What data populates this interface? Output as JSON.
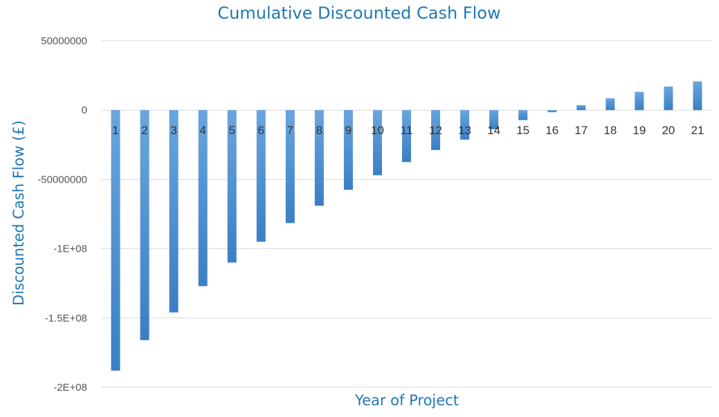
{
  "chart_data": {
    "type": "bar",
    "title": "Cumulative Discounted Cash Flow",
    "xlabel": "Year of Project",
    "ylabel": "Discounted Cash Flow (£)",
    "categories": [
      "1",
      "2",
      "3",
      "4",
      "5",
      "6",
      "7",
      "8",
      "9",
      "10",
      "11",
      "12",
      "13",
      "14",
      "15",
      "16",
      "17",
      "18",
      "19",
      "20",
      "21"
    ],
    "values": [
      -188000000,
      -166000000,
      -146000000,
      -127000000,
      -110000000,
      -95000000,
      -81500000,
      -69000000,
      -57500000,
      -47000000,
      -37500000,
      -28800000,
      -21300000,
      -13800000,
      -7200000,
      -1500000,
      3600000,
      8500000,
      13200000,
      17000000,
      20700000
    ],
    "ylim": [
      -200000000,
      50000000
    ],
    "yticks": [
      {
        "value": 50000000,
        "label": "50000000"
      },
      {
        "value": 0,
        "label": "0"
      },
      {
        "value": -50000000,
        "label": "-50000000"
      },
      {
        "value": -100000000,
        "label": "-1E+08"
      },
      {
        "value": -150000000,
        "label": "-1.5E+08"
      },
      {
        "value": -200000000,
        "label": "-2E+08"
      }
    ],
    "grid": true,
    "legend": "none",
    "colors": {
      "bar_top": "#6aa5dd",
      "bar_bottom": "#3a7fc4",
      "title": "#1f78b4"
    }
  }
}
